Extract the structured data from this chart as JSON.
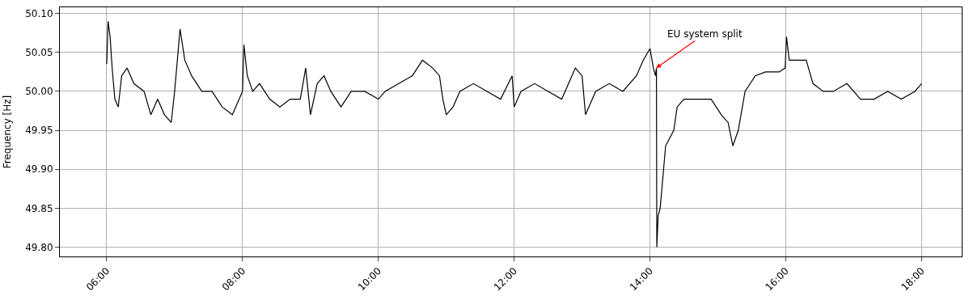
{
  "chart_data": {
    "type": "line",
    "ylabel": "Frequency [Hz]",
    "x": [
      6.0,
      6.02,
      6.05,
      6.08,
      6.12,
      6.17,
      6.22,
      6.3,
      6.4,
      6.55,
      6.65,
      6.75,
      6.85,
      6.95,
      7.0,
      7.05,
      7.08,
      7.15,
      7.25,
      7.4,
      7.55,
      7.7,
      7.85,
      7.95,
      8.0,
      8.02,
      8.07,
      8.15,
      8.25,
      8.4,
      8.55,
      8.7,
      8.85,
      8.93,
      9.0,
      9.1,
      9.2,
      9.3,
      9.45,
      9.6,
      9.8,
      10.0,
      10.1,
      10.3,
      10.5,
      10.65,
      10.8,
      10.9,
      10.95,
      11.0,
      11.1,
      11.2,
      11.4,
      11.6,
      11.8,
      11.97,
      12.0,
      12.1,
      12.3,
      12.5,
      12.7,
      12.9,
      13.0,
      13.05,
      13.2,
      13.4,
      13.6,
      13.8,
      13.9,
      14.0,
      14.05,
      14.08,
      14.095,
      14.1,
      14.12,
      14.15,
      14.2,
      14.23,
      14.35,
      14.4,
      14.5,
      14.7,
      14.9,
      15.05,
      15.15,
      15.22,
      15.3,
      15.4,
      15.55,
      15.7,
      15.9,
      15.99,
      16.01,
      16.05,
      16.2,
      16.3,
      16.4,
      16.55,
      16.7,
      16.9,
      17.1,
      17.3,
      17.5,
      17.7,
      17.9,
      18.0
    ],
    "series": [
      {
        "color": "#000000",
        "values": [
          50.035,
          50.09,
          50.07,
          50.03,
          49.99,
          49.98,
          50.02,
          50.03,
          50.01,
          50.0,
          49.97,
          49.99,
          49.97,
          49.96,
          50.0,
          50.05,
          50.08,
          50.04,
          50.02,
          50.0,
          50.0,
          49.98,
          49.97,
          49.99,
          50.0,
          50.06,
          50.02,
          50.0,
          50.01,
          49.99,
          49.98,
          49.99,
          49.99,
          50.03,
          49.97,
          50.01,
          50.02,
          50.0,
          49.98,
          50.0,
          50.0,
          49.99,
          50.0,
          50.01,
          50.02,
          50.04,
          50.03,
          50.02,
          49.99,
          49.97,
          49.98,
          50.0,
          50.01,
          50.0,
          49.99,
          50.02,
          49.98,
          50.0,
          50.01,
          50.0,
          49.99,
          50.03,
          50.02,
          49.97,
          50.0,
          50.01,
          50.0,
          50.02,
          50.04,
          50.055,
          50.03,
          50.02,
          50.03,
          49.8,
          49.84,
          49.85,
          49.9,
          49.93,
          49.95,
          49.98,
          49.99,
          49.99,
          49.99,
          49.97,
          49.96,
          49.93,
          49.95,
          50.0,
          50.02,
          50.025,
          50.025,
          50.03,
          50.07,
          50.04,
          50.04,
          50.04,
          50.01,
          50.0,
          50.0,
          50.01,
          49.99,
          49.99,
          50.0,
          49.99,
          50.0,
          50.01
        ]
      }
    ],
    "xlim": [
      5.31,
      18.59
    ],
    "xticks": [
      {
        "value": 6,
        "label": "06:00"
      },
      {
        "value": 8,
        "label": "08:00"
      },
      {
        "value": 10,
        "label": "10:00"
      },
      {
        "value": 12,
        "label": "12:00"
      },
      {
        "value": 14,
        "label": "14:00"
      },
      {
        "value": 16,
        "label": "16:00"
      },
      {
        "value": 18,
        "label": "18:00"
      }
    ],
    "ylim": [
      49.788,
      50.108
    ],
    "yticks": [
      {
        "value": 49.8,
        "label": "49.80"
      },
      {
        "value": 49.85,
        "label": "49.85"
      },
      {
        "value": 49.9,
        "label": "49.90"
      },
      {
        "value": 49.95,
        "label": "49.95"
      },
      {
        "value": 50.0,
        "label": "50.00"
      },
      {
        "value": 50.05,
        "label": "50.05"
      },
      {
        "value": 50.1,
        "label": "50.10"
      }
    ],
    "annotations": [
      {
        "text": "EU system split",
        "x": 14.09,
        "y": 50.03
      }
    ],
    "grid": true,
    "marker": "none",
    "line_style": "solid"
  }
}
